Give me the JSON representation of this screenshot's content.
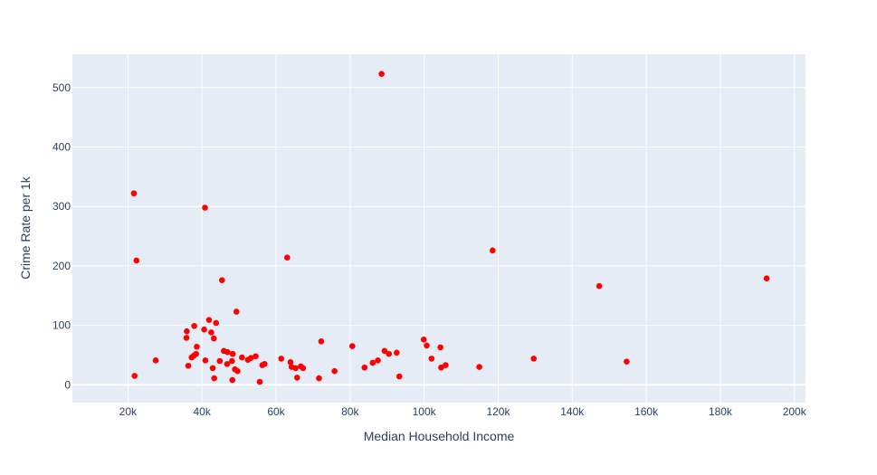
{
  "chart_data": {
    "type": "scatter",
    "title": "",
    "xlabel": "Median Household Income",
    "ylabel": "Crime Rate per 1k",
    "xlim": [
      5000,
      203000
    ],
    "ylim": [
      -30,
      556
    ],
    "grid": true,
    "x_ticks": [
      20000,
      40000,
      60000,
      80000,
      100000,
      120000,
      140000,
      160000,
      180000,
      200000
    ],
    "x_tick_labels": [
      "20k",
      "40k",
      "60k",
      "80k",
      "100k",
      "120k",
      "140k",
      "160k",
      "180k",
      "200k"
    ],
    "y_ticks": [
      0,
      100,
      200,
      300,
      400,
      500
    ],
    "y_tick_labels": [
      "0",
      "100",
      "200",
      "300",
      "400",
      "500"
    ],
    "colors": {
      "marker": "#ff0000",
      "plot_bg": "#e5ecf6",
      "grid": "#ffffff",
      "text": "#2a3f5f"
    },
    "points": [
      {
        "x": 21600,
        "y": 322
      },
      {
        "x": 21800,
        "y": 15
      },
      {
        "x": 22300,
        "y": 209
      },
      {
        "x": 27500,
        "y": 41
      },
      {
        "x": 35800,
        "y": 79
      },
      {
        "x": 35900,
        "y": 90
      },
      {
        "x": 36300,
        "y": 32
      },
      {
        "x": 37200,
        "y": 46
      },
      {
        "x": 37800,
        "y": 49
      },
      {
        "x": 37900,
        "y": 99
      },
      {
        "x": 38400,
        "y": 52
      },
      {
        "x": 38600,
        "y": 64
      },
      {
        "x": 40600,
        "y": 93
      },
      {
        "x": 40800,
        "y": 298
      },
      {
        "x": 40900,
        "y": 41
      },
      {
        "x": 41900,
        "y": 109
      },
      {
        "x": 42500,
        "y": 88
      },
      {
        "x": 42900,
        "y": 28
      },
      {
        "x": 43200,
        "y": 78
      },
      {
        "x": 43300,
        "y": 11
      },
      {
        "x": 43800,
        "y": 104
      },
      {
        "x": 44800,
        "y": 40
      },
      {
        "x": 45400,
        "y": 176
      },
      {
        "x": 45900,
        "y": 57
      },
      {
        "x": 46800,
        "y": 35
      },
      {
        "x": 46900,
        "y": 55
      },
      {
        "x": 48100,
        "y": 40
      },
      {
        "x": 48200,
        "y": 8
      },
      {
        "x": 48300,
        "y": 52
      },
      {
        "x": 48900,
        "y": 26
      },
      {
        "x": 49300,
        "y": 123
      },
      {
        "x": 49600,
        "y": 23
      },
      {
        "x": 50800,
        "y": 46
      },
      {
        "x": 52400,
        "y": 42
      },
      {
        "x": 53200,
        "y": 45
      },
      {
        "x": 54500,
        "y": 48
      },
      {
        "x": 55600,
        "y": 5
      },
      {
        "x": 56300,
        "y": 33
      },
      {
        "x": 56900,
        "y": 35
      },
      {
        "x": 61400,
        "y": 44
      },
      {
        "x": 63000,
        "y": 214
      },
      {
        "x": 63900,
        "y": 38
      },
      {
        "x": 64200,
        "y": 30
      },
      {
        "x": 65300,
        "y": 28
      },
      {
        "x": 65700,
        "y": 12
      },
      {
        "x": 66700,
        "y": 31
      },
      {
        "x": 67300,
        "y": 28
      },
      {
        "x": 71600,
        "y": 11
      },
      {
        "x": 72200,
        "y": 73
      },
      {
        "x": 75800,
        "y": 23
      },
      {
        "x": 80600,
        "y": 65
      },
      {
        "x": 83900,
        "y": 29
      },
      {
        "x": 86100,
        "y": 37
      },
      {
        "x": 87500,
        "y": 41
      },
      {
        "x": 88500,
        "y": 523
      },
      {
        "x": 89300,
        "y": 57
      },
      {
        "x": 90500,
        "y": 52
      },
      {
        "x": 92600,
        "y": 54
      },
      {
        "x": 93300,
        "y": 14
      },
      {
        "x": 99900,
        "y": 76
      },
      {
        "x": 100700,
        "y": 66
      },
      {
        "x": 102000,
        "y": 44
      },
      {
        "x": 104400,
        "y": 63
      },
      {
        "x": 104600,
        "y": 29
      },
      {
        "x": 105800,
        "y": 33
      },
      {
        "x": 114900,
        "y": 30
      },
      {
        "x": 118500,
        "y": 226
      },
      {
        "x": 129600,
        "y": 44
      },
      {
        "x": 147300,
        "y": 166
      },
      {
        "x": 154700,
        "y": 39
      },
      {
        "x": 192500,
        "y": 179
      }
    ]
  }
}
